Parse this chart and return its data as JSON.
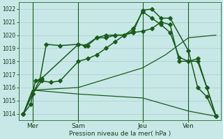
{
  "xlabel": "Pression niveau de la mer( hPa )",
  "background_color": "#c8e8e8",
  "grid_color": "#aacccc",
  "line_color": "#1a5c1a",
  "ylim": [
    1013.5,
    1022.5
  ],
  "xlim": [
    0,
    22
  ],
  "xtick_positions": [
    1.5,
    6.5,
    13.5,
    18.5
  ],
  "xtick_labels": [
    "Mer",
    "Sam",
    "Jeu",
    "Ven"
  ],
  "ytick_values": [
    1014,
    1015,
    1016,
    1017,
    1018,
    1019,
    1020,
    1021,
    1022
  ],
  "vline_positions": [
    1.5,
    6.5,
    13.5,
    18.5
  ],
  "lines": [
    {
      "x": [
        0.5,
        1.5,
        6.5,
        13.5,
        16,
        18.5,
        21.5
      ],
      "y": [
        1014.0,
        1015.8,
        1016.0,
        1017.5,
        1018.5,
        1019.8,
        1020.0
      ],
      "dashed": false,
      "marker": false,
      "lw": 0.9
    },
    {
      "x": [
        0.5,
        1.5,
        6.5,
        13.5,
        18.5,
        21.5
      ],
      "y": [
        1014.0,
        1015.8,
        1015.5,
        1015.2,
        1014.2,
        1013.8
      ],
      "dashed": false,
      "marker": false,
      "lw": 0.9
    },
    {
      "x": [
        0.5,
        1.3,
        1.8,
        2.5,
        6.5,
        7.2,
        8.5,
        9.5,
        10.5,
        11.5,
        12.5,
        13.5,
        14.5,
        15.5,
        16.5,
        18.5,
        19.5,
        20.5,
        21.5
      ],
      "y": [
        1014.0,
        1014.7,
        1016.5,
        1016.7,
        1019.3,
        1019.2,
        1019.8,
        1020.0,
        1020.0,
        1020.0,
        1020.3,
        1021.9,
        1022.0,
        1021.3,
        1021.3,
        1018.8,
        1016.0,
        1015.3,
        1013.8
      ],
      "dashed": false,
      "marker": true,
      "lw": 1.1
    },
    {
      "x": [
        0.5,
        1.5,
        2.3,
        3.0,
        4.5,
        6.5,
        7.5,
        8.5,
        9.5,
        10.5,
        11.5,
        12.5,
        13.5,
        14.5,
        15.5,
        16.5,
        17.5,
        18.5,
        19.5,
        20.5,
        21.5
      ],
      "y": [
        1014.0,
        1015.5,
        1016.6,
        1019.3,
        1019.2,
        1019.3,
        1019.2,
        1019.8,
        1019.8,
        1020.0,
        1020.0,
        1020.5,
        1021.8,
        1021.3,
        1020.8,
        1020.2,
        1018.3,
        1018.0,
        1018.2,
        1016.0,
        1013.8
      ],
      "dashed": false,
      "marker": true,
      "lw": 1.1
    },
    {
      "x": [
        0.5,
        1.5,
        2.5,
        3.5,
        4.5,
        6.5,
        7.5,
        8.5,
        9.5,
        10.5,
        11.5,
        12.5,
        13.5,
        14.5,
        15.5,
        16.5,
        17.5,
        18.5,
        19.5,
        20.5,
        21.5
      ],
      "y": [
        1014.0,
        1015.5,
        1016.5,
        1016.4,
        1016.5,
        1018.0,
        1018.2,
        1018.5,
        1019.0,
        1019.5,
        1020.0,
        1020.2,
        1020.3,
        1020.5,
        1021.0,
        1020.8,
        1018.0,
        1018.0,
        1018.0,
        1016.0,
        1013.8
      ],
      "dashed": false,
      "marker": true,
      "lw": 1.1
    }
  ]
}
